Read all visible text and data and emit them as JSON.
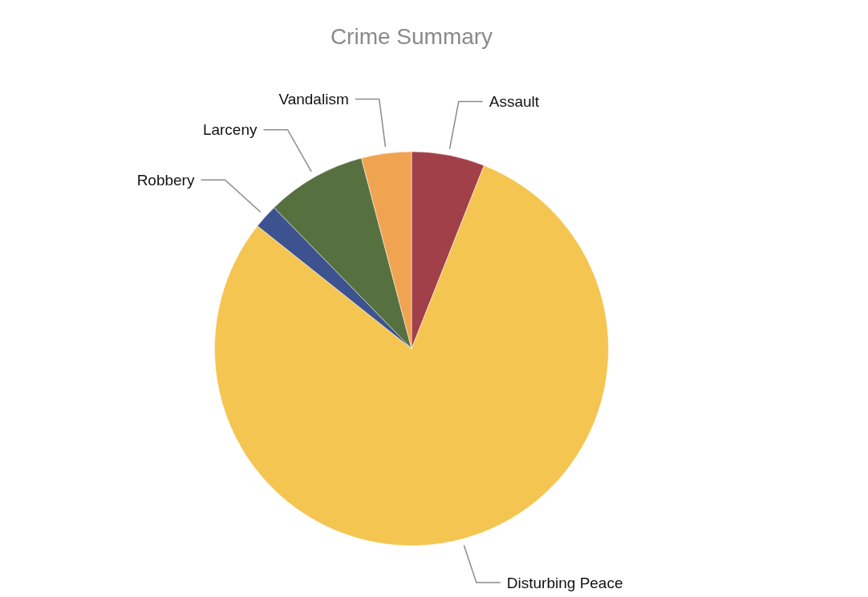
{
  "chart_data": {
    "type": "pie",
    "title": "Crime Summary",
    "categories": [
      "Assault",
      "Disturbing Peace",
      "Robbery",
      "Larceny",
      "Vandalism"
    ],
    "values": [
      6,
      79.7,
      2,
      8.2,
      4.1
    ],
    "colors": [
      "#a2404a",
      "#f4c550",
      "#3d5390",
      "#56713f",
      "#f0a452"
    ]
  }
}
